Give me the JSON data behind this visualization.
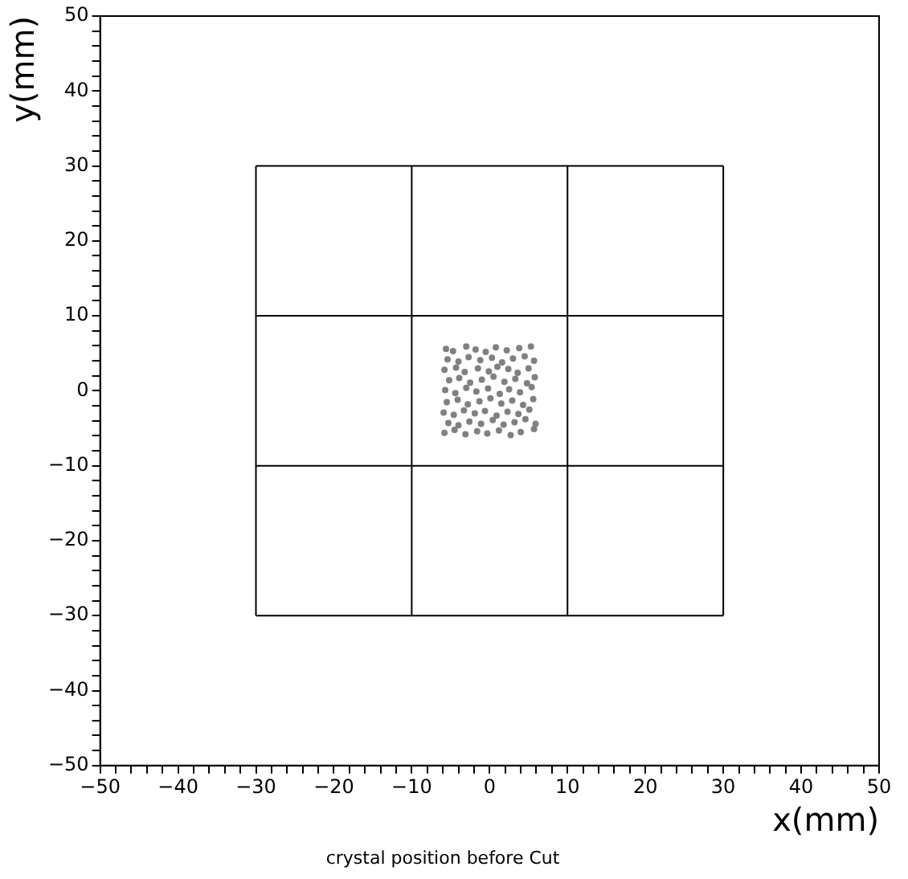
{
  "chart_data": {
    "type": "scatter",
    "title": "crystal position before Cut",
    "xlabel": "x(mm)",
    "ylabel": "y(mm)",
    "xlim": [
      -50,
      50
    ],
    "ylim": [
      -50,
      50
    ],
    "xticks": [
      -50,
      {
        "value": -48,
        "label": null
      },
      {
        "value": -46,
        "label": null
      },
      {
        "value": -44,
        "label": null
      },
      {
        "value": -42,
        "label": null
      },
      -40,
      {
        "value": -38,
        "label": null
      },
      {
        "value": -36,
        "label": null
      },
      {
        "value": -34,
        "label": null
      },
      {
        "value": -32,
        "label": null
      },
      -30,
      {
        "value": -28,
        "label": null
      },
      {
        "value": -26,
        "label": null
      },
      {
        "value": -24,
        "label": null
      },
      {
        "value": -22,
        "label": null
      },
      -20,
      {
        "value": -18,
        "label": null
      },
      {
        "value": -16,
        "label": null
      },
      {
        "value": -14,
        "label": null
      },
      {
        "value": -12,
        "label": null
      },
      -10,
      {
        "value": -8,
        "label": null
      },
      {
        "value": -6,
        "label": null
      },
      {
        "value": -4,
        "label": null
      },
      {
        "value": -2,
        "label": null
      },
      0,
      {
        "value": 2,
        "label": null
      },
      {
        "value": 4,
        "label": null
      },
      {
        "value": 6,
        "label": null
      },
      {
        "value": 8,
        "label": null
      },
      10,
      {
        "value": 12,
        "label": null
      },
      {
        "value": 14,
        "label": null
      },
      {
        "value": 16,
        "label": null
      },
      {
        "value": 18,
        "label": null
      },
      20,
      {
        "value": 22,
        "label": null
      },
      {
        "value": 24,
        "label": null
      },
      {
        "value": 26,
        "label": null
      },
      {
        "value": 28,
        "label": null
      },
      30,
      {
        "value": 32,
        "label": null
      },
      {
        "value": 34,
        "label": null
      },
      {
        "value": 36,
        "label": null
      },
      {
        "value": 38,
        "label": null
      },
      40,
      {
        "value": 42,
        "label": null
      },
      {
        "value": 44,
        "label": null
      },
      {
        "value": 46,
        "label": null
      },
      {
        "value": 48,
        "label": null
      },
      50
    ],
    "yticks": [
      -50,
      {
        "value": -48,
        "label": null
      },
      {
        "value": -46,
        "label": null
      },
      {
        "value": -44,
        "label": null
      },
      {
        "value": -42,
        "label": null
      },
      -40,
      {
        "value": -38,
        "label": null
      },
      {
        "value": -36,
        "label": null
      },
      {
        "value": -34,
        "label": null
      },
      {
        "value": -32,
        "label": null
      },
      -30,
      {
        "value": -28,
        "label": null
      },
      {
        "value": -26,
        "label": null
      },
      {
        "value": -24,
        "label": null
      },
      {
        "value": -22,
        "label": null
      },
      -20,
      {
        "value": -18,
        "label": null
      },
      {
        "value": -16,
        "label": null
      },
      {
        "value": -14,
        "label": null
      },
      {
        "value": -12,
        "label": null
      },
      -10,
      {
        "value": -8,
        "label": null
      },
      {
        "value": -6,
        "label": null
      },
      {
        "value": -4,
        "label": null
      },
      {
        "value": -2,
        "label": null
      },
      0,
      {
        "value": 2,
        "label": null
      },
      {
        "value": 4,
        "label": null
      },
      {
        "value": 6,
        "label": null
      },
      {
        "value": 8,
        "label": null
      },
      10,
      {
        "value": 12,
        "label": null
      },
      {
        "value": 14,
        "label": null
      },
      {
        "value": 16,
        "label": null
      },
      {
        "value": 18,
        "label": null
      },
      20,
      {
        "value": 22,
        "label": null
      },
      {
        "value": 24,
        "label": null
      },
      {
        "value": 26,
        "label": null
      },
      {
        "value": 28,
        "label": null
      },
      30,
      {
        "value": 32,
        "label": null
      },
      {
        "value": 34,
        "label": null
      },
      {
        "value": 36,
        "label": null
      },
      {
        "value": 38,
        "label": null
      },
      40,
      {
        "value": 42,
        "label": null
      },
      {
        "value": 44,
        "label": null
      },
      {
        "value": 46,
        "label": null
      },
      {
        "value": 48,
        "label": null
      },
      50
    ],
    "grid": false,
    "legend": false,
    "marker": "circle",
    "series": [
      {
        "type": "line",
        "color": "#000000",
        "marker": "none",
        "x": [
          -30,
          30
        ],
        "values": [
          30,
          30
        ]
      },
      {
        "type": "line",
        "color": "#000000",
        "marker": "none",
        "x": [
          -30,
          30
        ],
        "values": [
          10,
          10
        ]
      },
      {
        "type": "line",
        "color": "#000000",
        "marker": "none",
        "x": [
          -30,
          30
        ],
        "values": [
          -10,
          -10
        ]
      },
      {
        "type": "line",
        "color": "#000000",
        "marker": "none",
        "x": [
          -30,
          30
        ],
        "values": [
          -30,
          -30
        ]
      },
      {
        "type": "line",
        "color": "#000000",
        "marker": "none",
        "x": [
          -30,
          -30
        ],
        "values": [
          -30,
          30
        ]
      },
      {
        "type": "line",
        "color": "#000000",
        "marker": "none",
        "x": [
          -10,
          -10
        ],
        "values": [
          -30,
          30
        ]
      },
      {
        "type": "line",
        "color": "#000000",
        "marker": "none",
        "x": [
          10,
          10
        ],
        "values": [
          -30,
          30
        ]
      },
      {
        "type": "line",
        "color": "#000000",
        "marker": "none",
        "x": [
          30,
          30
        ],
        "values": [
          -30,
          30
        ]
      },
      {
        "type": "scatter",
        "color": "#808080",
        "x": [
          -5.8,
          -4.5,
          -3.1,
          -1.6,
          -0.3,
          1.2,
          2.7,
          4.0,
          5.7,
          -5.3,
          -4.0,
          -2.6,
          -1.1,
          0.4,
          1.8,
          3.2,
          4.6,
          5.9,
          -5.9,
          -4.6,
          -3.3,
          -1.9,
          -0.6,
          0.9,
          2.3,
          3.7,
          5.1,
          -5.5,
          -4.1,
          -2.8,
          -1.3,
          0.1,
          1.5,
          2.9,
          4.3,
          5.6,
          -5.7,
          -4.4,
          -3.0,
          -1.7,
          -0.2,
          1.3,
          2.5,
          3.9,
          5.4,
          -5.2,
          -3.9,
          -2.5,
          -1.0,
          0.5,
          1.9,
          3.3,
          4.8,
          5.8,
          -5.8,
          -4.3,
          -3.2,
          -1.5,
          -0.1,
          1.0,
          2.4,
          3.6,
          5.0,
          -5.4,
          -4.0,
          -2.7,
          -1.2,
          0.3,
          1.6,
          3.0,
          4.5,
          5.7,
          -5.6,
          -4.7,
          -3.0,
          -1.8,
          -0.5,
          0.8,
          2.2,
          3.8,
          5.3
        ],
        "values": [
          -5.6,
          -5.2,
          -5.8,
          -5.4,
          -5.7,
          -5.3,
          -5.9,
          -5.5,
          -5.1,
          -4.3,
          -4.6,
          -4.1,
          -4.4,
          -3.9,
          -4.5,
          -4.2,
          -3.8,
          -4.4,
          -2.9,
          -3.2,
          -2.6,
          -3.0,
          -2.7,
          -3.3,
          -2.8,
          -3.1,
          -2.5,
          -1.5,
          -1.2,
          -1.8,
          -1.4,
          -1.0,
          -1.7,
          -1.3,
          -1.9,
          -1.1,
          0.1,
          -0.3,
          0.4,
          -0.1,
          0.3,
          -0.4,
          0.2,
          -0.2,
          0.5,
          1.4,
          1.7,
          1.1,
          1.5,
          1.9,
          1.2,
          1.6,
          1.0,
          1.8,
          2.8,
          3.1,
          2.5,
          3.0,
          2.6,
          3.2,
          2.9,
          2.4,
          3.0,
          4.2,
          3.9,
          4.5,
          4.1,
          4.4,
          3.8,
          4.3,
          4.6,
          4.0,
          5.6,
          5.3,
          5.9,
          5.5,
          5.2,
          5.8,
          5.4,
          5.7,
          5.9
        ]
      }
    ]
  }
}
